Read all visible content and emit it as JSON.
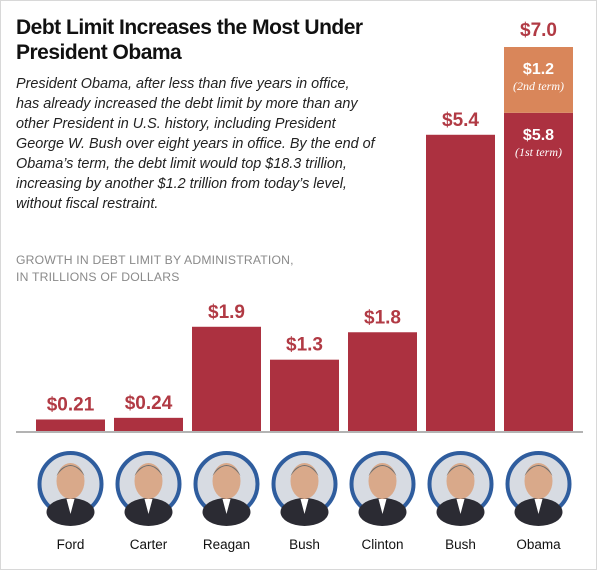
{
  "title": "Debt Limit Increases the Most Under President Obama",
  "intro": "President Obama, after less than five years in office, has already increased the debt limit by more than any other President in U.S. history, including President George W. Bush over eight years in office. By the end of Obama’s term, the debt limit would top $18.3 trillion, increasing by another $1.2 trillion from today’s level, without fiscal restraint.",
  "axis_note": [
    "GROWTH IN DEBT LIMIT BY ADMINISTRATION,",
    "IN TRILLIONS OF DOLLARS"
  ],
  "colors": {
    "bar": "#ac3140",
    "second_term": "#d9865a",
    "value_text": "#b13a44",
    "baseline": "#9a9a9a",
    "portrait_ring": "#2f5d9e"
  },
  "chart_data": {
    "type": "bar",
    "title": "Debt Limit Increases the Most Under President Obama",
    "ylabel": "Growth in debt limit by administration, in trillions of dollars",
    "categories": [
      "Ford",
      "Carter",
      "Reagan",
      "Bush",
      "Clinton",
      "Bush",
      "Obama"
    ],
    "values": [
      0.21,
      0.24,
      1.9,
      1.3,
      1.8,
      5.4,
      7.0
    ],
    "value_labels": [
      "$0.21",
      "$0.24",
      "$1.9",
      "$1.3",
      "$1.8",
      "$5.4",
      "$7.0"
    ],
    "ylim": [
      0,
      7.0
    ],
    "stacked_last": {
      "category": "Obama",
      "segments": [
        {
          "label": "$5.8",
          "note": "(1st term)",
          "value": 5.8
        },
        {
          "label": "$1.2",
          "note": "(2nd term)",
          "value": 1.2
        }
      ],
      "total_label": "$7.0"
    },
    "grid": false,
    "legend": "none",
    "category_portraits": true
  }
}
